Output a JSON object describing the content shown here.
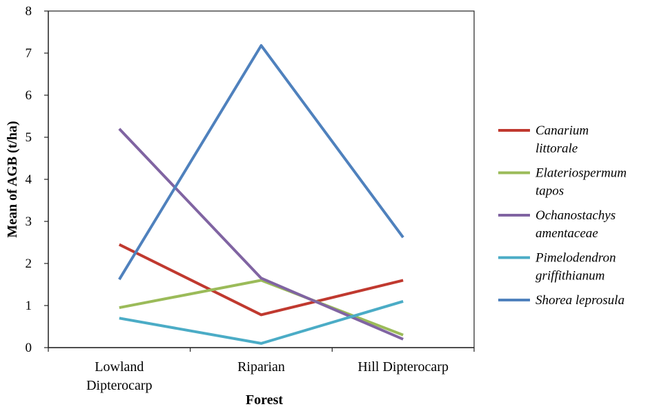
{
  "chart_data": {
    "type": "line",
    "title": "",
    "xlabel": "Forest",
    "ylabel": "Mean of AGB (t/ha)",
    "categories": [
      [
        "Lowland",
        "Dipterocarp"
      ],
      [
        "Riparian"
      ],
      [
        "Hill Dipterocarp"
      ]
    ],
    "ylim": [
      0,
      8
    ],
    "yticks": [
      "0",
      "1",
      "2",
      "3",
      "4",
      "5",
      "6",
      "7",
      "8"
    ],
    "grid": false,
    "legend_position": "right",
    "series": [
      {
        "name": [
          "Canarium",
          "littorale"
        ],
        "color": "#C0392F",
        "values": [
          2.45,
          0.78,
          1.6
        ]
      },
      {
        "name": [
          "Elateriospermum",
          "tapos"
        ],
        "color": "#9BBB59",
        "values": [
          0.95,
          1.6,
          0.3
        ]
      },
      {
        "name": [
          "Ochanostachys",
          "amentaceae"
        ],
        "color": "#8064A2",
        "values": [
          5.2,
          1.65,
          0.2
        ]
      },
      {
        "name": [
          "Pimelodendron",
          "griffithianum"
        ],
        "color": "#4BACC6",
        "values": [
          0.7,
          0.1,
          1.1
        ]
      },
      {
        "name": [
          "Shorea leprosula"
        ],
        "color": "#4F81BD",
        "values": [
          1.62,
          7.18,
          2.62
        ]
      }
    ]
  }
}
